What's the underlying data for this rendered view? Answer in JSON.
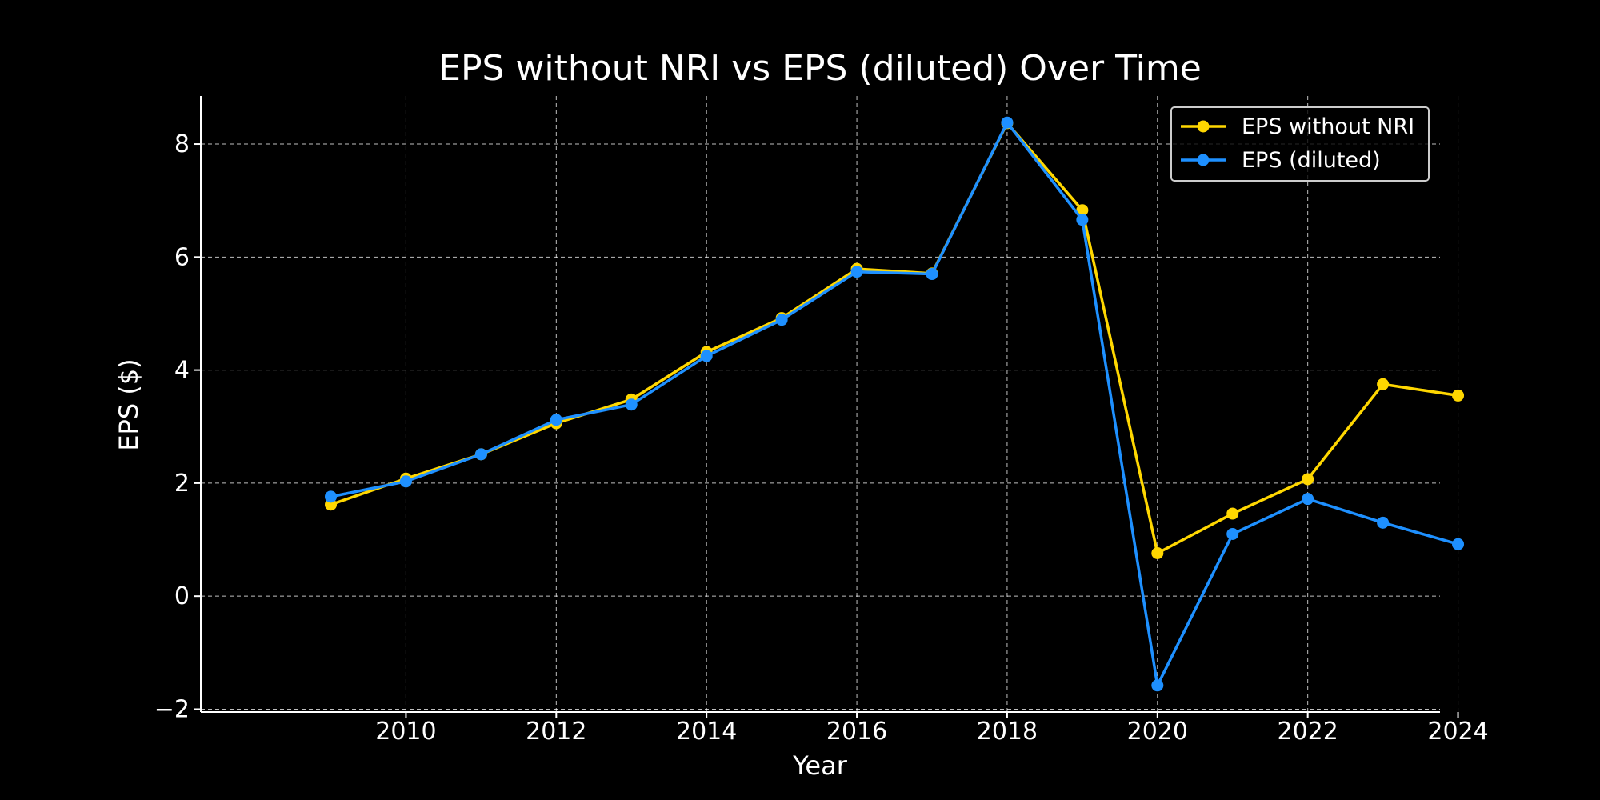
{
  "chart_data": {
    "type": "line",
    "title": "EPS without NRI vs EPS (diluted) Over Time",
    "xlabel": "Year",
    "ylabel": "EPS ($)",
    "x": [
      2009,
      2010,
      2011,
      2012,
      2013,
      2014,
      2015,
      2016,
      2017,
      2018,
      2019,
      2020,
      2021,
      2022,
      2023,
      2024
    ],
    "xlim": [
      2007.27,
      2023.76
    ],
    "ylim": [
      -2.05,
      8.85
    ],
    "xticks": [
      2010,
      2012,
      2014,
      2016,
      2018,
      2020,
      2022,
      2024
    ],
    "yticks": [
      -2,
      0,
      2,
      4,
      6,
      8
    ],
    "ytick_labels": [
      "−2",
      "0",
      "2",
      "4",
      "6",
      "8"
    ],
    "grid": true,
    "legend_position": "top-right",
    "background": "#000000",
    "series": [
      {
        "name": "EPS without NRI",
        "color": "#FFD700",
        "values": [
          1.62,
          2.08,
          2.51,
          3.06,
          3.48,
          4.32,
          4.92,
          5.79,
          5.71,
          8.37,
          6.83,
          0.76,
          1.46,
          2.07,
          3.75,
          3.55
        ]
      },
      {
        "name": "EPS (diluted)",
        "color": "#1E90FF",
        "values": [
          1.76,
          2.03,
          2.51,
          3.12,
          3.39,
          4.25,
          4.89,
          5.74,
          5.7,
          8.38,
          6.66,
          -1.58,
          1.1,
          1.72,
          1.3,
          0.92
        ]
      }
    ]
  }
}
